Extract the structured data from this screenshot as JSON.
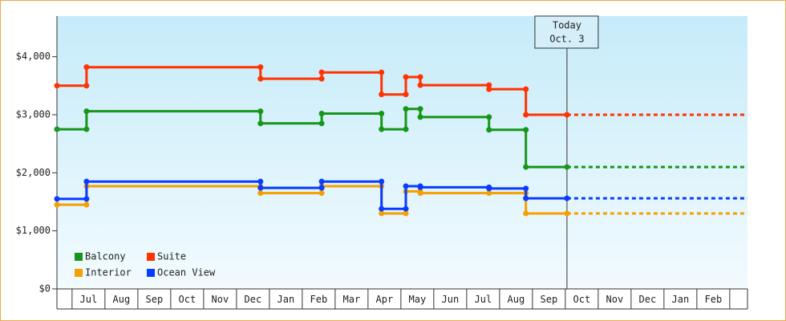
{
  "chart_data": {
    "type": "step-line",
    "ylim": [
      0,
      4700
    ],
    "yticks": [
      {
        "value": 0,
        "label": "$0"
      },
      {
        "value": 1000,
        "label": "$1,000"
      },
      {
        "value": 2000,
        "label": "$2,000"
      },
      {
        "value": 3000,
        "label": "$3,000"
      },
      {
        "value": 4000,
        "label": "$4,000"
      }
    ],
    "xlim": [
      -0.46,
      20.54
    ],
    "xticks": [
      {
        "value": 0.5,
        "label": "Jul"
      },
      {
        "value": 1.5,
        "label": "Aug"
      },
      {
        "value": 2.5,
        "label": "Sep"
      },
      {
        "value": 3.5,
        "label": "Oct"
      },
      {
        "value": 4.5,
        "label": "Nov"
      },
      {
        "value": 5.5,
        "label": "Dec"
      },
      {
        "value": 6.5,
        "label": "Jan"
      },
      {
        "value": 7.5,
        "label": "Feb"
      },
      {
        "value": 8.5,
        "label": "Mar"
      },
      {
        "value": 9.5,
        "label": "Apr"
      },
      {
        "value": 10.5,
        "label": "May"
      },
      {
        "value": 11.5,
        "label": "Jun"
      },
      {
        "value": 12.5,
        "label": "Jul"
      },
      {
        "value": 13.5,
        "label": "Aug"
      },
      {
        "value": 14.5,
        "label": "Sep"
      },
      {
        "value": 15.5,
        "label": "Oct"
      },
      {
        "value": 16.5,
        "label": "Nov"
      },
      {
        "value": 17.5,
        "label": "Dec"
      },
      {
        "value": 18.5,
        "label": "Jan"
      },
      {
        "value": 19.5,
        "label": "Feb"
      }
    ],
    "projected": true,
    "legend": "lower left",
    "annotation": {
      "x": 15.05,
      "text": [
        "Today",
        "Oct. 3"
      ]
    },
    "series": [
      {
        "name": "Balcony",
        "color": "#16961a",
        "x": [
          -0.46,
          0.44,
          0.44,
          5.73,
          5.73,
          7.59,
          7.59,
          9.41,
          9.41,
          10.15,
          10.15,
          10.59,
          10.59,
          12.68,
          12.68,
          13.8,
          13.8,
          15.05
        ],
        "values": [
          2750,
          2750,
          3060,
          3060,
          2850,
          2850,
          3020,
          3020,
          2750,
          2750,
          3100,
          3100,
          2960,
          2960,
          2740,
          2740,
          2100,
          2100
        ]
      },
      {
        "name": "Suite",
        "color": "#ff3300",
        "x": [
          -0.46,
          0.44,
          0.44,
          5.73,
          5.73,
          7.59,
          7.59,
          9.41,
          9.41,
          10.15,
          10.15,
          10.59,
          10.59,
          12.68,
          12.68,
          13.8,
          13.8,
          15.05
        ],
        "values": [
          3500,
          3500,
          3820,
          3820,
          3620,
          3620,
          3730,
          3730,
          3350,
          3350,
          3650,
          3650,
          3510,
          3510,
          3440,
          3440,
          3000,
          3000
        ]
      },
      {
        "name": "Interior",
        "color": "#f5a000",
        "x": [
          -0.46,
          0.44,
          0.44,
          5.73,
          5.73,
          7.59,
          7.59,
          9.41,
          9.41,
          10.15,
          10.15,
          10.59,
          10.59,
          12.68,
          13.8,
          13.8,
          15.05
        ],
        "values": [
          1450,
          1450,
          1770,
          1770,
          1650,
          1650,
          1770,
          1770,
          1300,
          1300,
          1680,
          1680,
          1650,
          1650,
          1650,
          1300,
          1300
        ]
      },
      {
        "name": "Ocean View",
        "color": "#0a3cff",
        "x": [
          -0.46,
          0.44,
          0.44,
          5.73,
          5.73,
          7.59,
          7.59,
          9.41,
          9.41,
          10.15,
          10.15,
          10.59,
          10.59,
          12.68,
          12.68,
          13.8,
          13.8,
          15.05
        ],
        "values": [
          1550,
          1550,
          1850,
          1850,
          1740,
          1740,
          1850,
          1850,
          1380,
          1380,
          1770,
          1770,
          1750,
          1750,
          1730,
          1730,
          1560,
          1560
        ]
      }
    ]
  }
}
